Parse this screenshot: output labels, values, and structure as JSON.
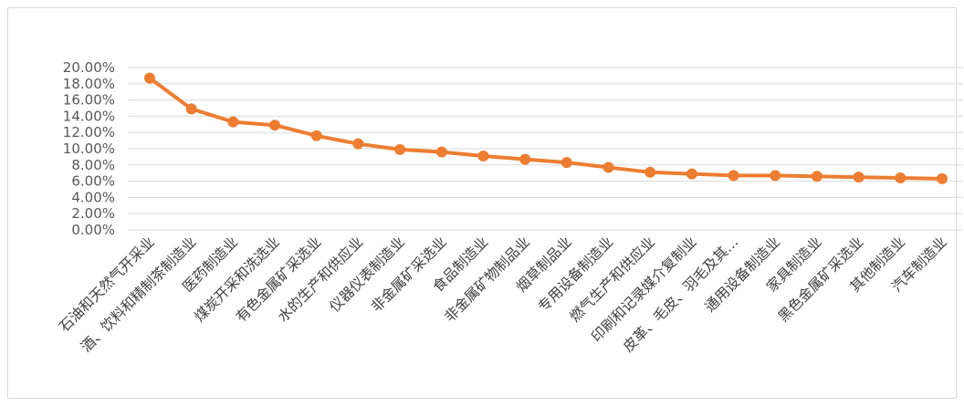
{
  "chart_data": {
    "type": "line",
    "categories": [
      "石油和天然气开采业",
      "酒、饮料和精制茶制造业",
      "医药制造业",
      "煤炭开采和洗选业",
      "有色金属矿采选业",
      "水的生产和供应业",
      "仪器仪表制造业",
      "非金属矿采选业",
      "食品制造业",
      "非金属矿物制品业",
      "烟草制品业",
      "专用设备制造业",
      "燃气生产和供应业",
      "印刷和记录媒介复制业",
      "皮革、毛皮、羽毛及其…",
      "通用设备制造业",
      "家具制造业",
      "黑色金属矿采选业",
      "其他制造业",
      "汽车制造业"
    ],
    "values": [
      0.187,
      0.149,
      0.133,
      0.129,
      0.116,
      0.106,
      0.099,
      0.096,
      0.091,
      0.087,
      0.083,
      0.077,
      0.071,
      0.069,
      0.067,
      0.067,
      0.066,
      0.065,
      0.064,
      0.063
    ],
    "yticks": [
      "0.00%",
      "2.00%",
      "4.00%",
      "6.00%",
      "8.00%",
      "10.00%",
      "12.00%",
      "14.00%",
      "16.00%",
      "18.00%",
      "20.00%"
    ],
    "ylim": [
      0,
      0.2
    ],
    "grid": true,
    "colors": {
      "line": "#ed7d31",
      "grid": "#d9d9d9",
      "tick_text": "#595959"
    }
  }
}
